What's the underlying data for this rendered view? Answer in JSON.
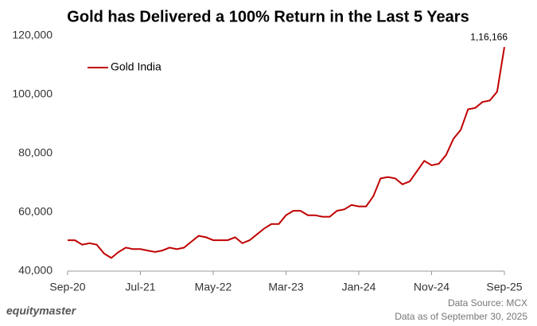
{
  "chart_data": {
    "type": "line",
    "title": "Gold has Delivered a 100% Return in the Last 5 Years",
    "categories": [
      "Sep-20",
      null,
      null,
      null,
      null,
      null,
      null,
      null,
      null,
      null,
      "Jul-21",
      null,
      null,
      null,
      null,
      null,
      null,
      null,
      null,
      null,
      "May-22",
      null,
      null,
      null,
      null,
      null,
      null,
      null,
      null,
      null,
      "Mar-23",
      null,
      null,
      null,
      null,
      null,
      null,
      null,
      null,
      null,
      "Jan-24",
      null,
      null,
      null,
      null,
      null,
      null,
      null,
      null,
      null,
      "Nov-24",
      null,
      null,
      null,
      null,
      null,
      null,
      null,
      null,
      null,
      "Sep-25"
    ],
    "series": [
      {
        "name": "Gold India",
        "color": "#c00000",
        "values": [
          50500,
          50500,
          49000,
          49500,
          49000,
          46000,
          44500,
          46500,
          48000,
          47500,
          47500,
          47000,
          46500,
          47000,
          48000,
          47500,
          48000,
          50000,
          52000,
          51500,
          50500,
          50500,
          50500,
          51500,
          49500,
          50500,
          52500,
          54500,
          56000,
          56000,
          59000,
          60500,
          60500,
          59000,
          59000,
          58500,
          58500,
          60500,
          61000,
          62500,
          62000,
          62000,
          65500,
          71500,
          72000,
          71500,
          69500,
          70500,
          74000,
          77500,
          76000,
          76500,
          79500,
          85000,
          88000,
          95000,
          95500,
          97500,
          98000,
          101000,
          116166
        ],
        "value_labels": [
          null,
          null,
          null,
          null,
          null,
          null,
          null,
          null,
          null,
          null,
          null,
          null,
          null,
          null,
          null,
          null,
          null,
          null,
          null,
          null,
          null,
          null,
          null,
          null,
          null,
          null,
          null,
          null,
          null,
          null,
          null,
          null,
          null,
          null,
          null,
          null,
          null,
          null,
          null,
          null,
          null,
          null,
          null,
          null,
          null,
          null,
          null,
          null,
          null,
          null,
          null,
          null,
          null,
          null,
          null,
          null,
          null,
          null,
          null,
          null,
          "1,16,166"
        ]
      }
    ],
    "ylim": [
      40000,
      120000
    ],
    "yticks": [
      {
        "value": 40000,
        "label": "40,000"
      },
      {
        "value": 60000,
        "label": "60,000"
      },
      {
        "value": 80000,
        "label": "80,000"
      },
      {
        "value": 100000,
        "label": "100,000"
      },
      {
        "value": 120000,
        "label": "120,000"
      }
    ],
    "grid": false,
    "legend": "upper left",
    "brand": "equitymaster",
    "source": "Data Source: MCX",
    "note": "Data as of September 30, 2025"
  }
}
